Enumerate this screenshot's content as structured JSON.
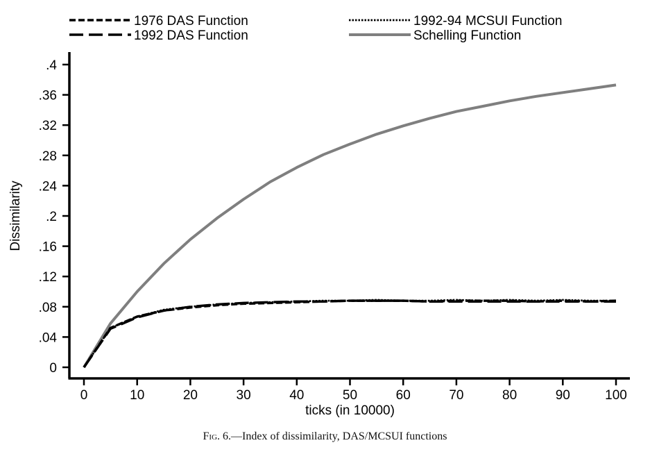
{
  "chart_data": {
    "type": "line",
    "xlabel": "ticks (in 10000)",
    "ylabel": "Dissimilarity",
    "xlim": [
      0,
      100
    ],
    "ylim": [
      0,
      0.4
    ],
    "xticks": [
      0,
      10,
      20,
      30,
      40,
      50,
      60,
      70,
      80,
      90,
      100
    ],
    "xtick_labels": [
      "0",
      "10",
      "20",
      "30",
      "40",
      "50",
      "60",
      "70",
      "80",
      "90",
      "100"
    ],
    "yticks": [
      0,
      0.04,
      0.08,
      0.12,
      0.16,
      0.2,
      0.24,
      0.28,
      0.32,
      0.36,
      0.4
    ],
    "ytick_labels": [
      "0",
      ".04",
      ".08",
      ".12",
      ".16",
      ".2",
      ".24",
      ".28",
      ".32",
      ".36",
      ".4"
    ],
    "grid": false,
    "legend_position": "top",
    "series": [
      {
        "name": "1976 DAS Function",
        "style": "short-dash",
        "color": "#000000",
        "x": [
          0,
          5,
          10,
          15,
          20,
          25,
          30,
          35,
          40,
          45,
          50,
          55,
          60,
          65,
          70,
          75,
          80,
          85,
          90,
          95,
          100
        ],
        "y": [
          0,
          0.052,
          0.067,
          0.075,
          0.079,
          0.082,
          0.084,
          0.085,
          0.086,
          0.087,
          0.088,
          0.088,
          0.088,
          0.087,
          0.088,
          0.088,
          0.088,
          0.087,
          0.088,
          0.087,
          0.088
        ]
      },
      {
        "name": "1992 DAS Function",
        "style": "long-dash",
        "color": "#000000",
        "x": [
          0,
          5,
          10,
          15,
          20,
          25,
          30,
          35,
          40,
          45,
          50,
          55,
          60,
          65,
          70,
          75,
          80,
          85,
          90,
          95,
          100
        ],
        "y": [
          0,
          0.051,
          0.066,
          0.075,
          0.08,
          0.083,
          0.085,
          0.086,
          0.087,
          0.087,
          0.088,
          0.088,
          0.088,
          0.087,
          0.087,
          0.087,
          0.087,
          0.087,
          0.087,
          0.087,
          0.087
        ]
      },
      {
        "name": "1992-94 MCSUI Function",
        "style": "dotted",
        "color": "#000000",
        "x": [
          0,
          5,
          10,
          15,
          20,
          25,
          30,
          35,
          40,
          45,
          50,
          55,
          60,
          65,
          70,
          75,
          80,
          85,
          90,
          95,
          100
        ],
        "y": [
          0,
          0.052,
          0.067,
          0.076,
          0.08,
          0.083,
          0.085,
          0.086,
          0.087,
          0.088,
          0.088,
          0.089,
          0.088,
          0.088,
          0.089,
          0.088,
          0.089,
          0.088,
          0.089,
          0.088,
          0.088
        ]
      },
      {
        "name": "Schelling Function",
        "style": "solid",
        "color": "#7f7f7f",
        "x": [
          0,
          5,
          10,
          15,
          20,
          25,
          30,
          35,
          40,
          45,
          50,
          55,
          60,
          65,
          70,
          75,
          80,
          85,
          90,
          95,
          100
        ],
        "y": [
          0,
          0.058,
          0.1,
          0.137,
          0.169,
          0.197,
          0.222,
          0.245,
          0.264,
          0.281,
          0.295,
          0.308,
          0.319,
          0.329,
          0.338,
          0.345,
          0.352,
          0.358,
          0.363,
          0.368,
          0.373
        ]
      }
    ]
  },
  "caption": {
    "fig_label": "Fig. 6.",
    "text": "—Index of dissimilarity, DAS/MCSUI functions"
  }
}
